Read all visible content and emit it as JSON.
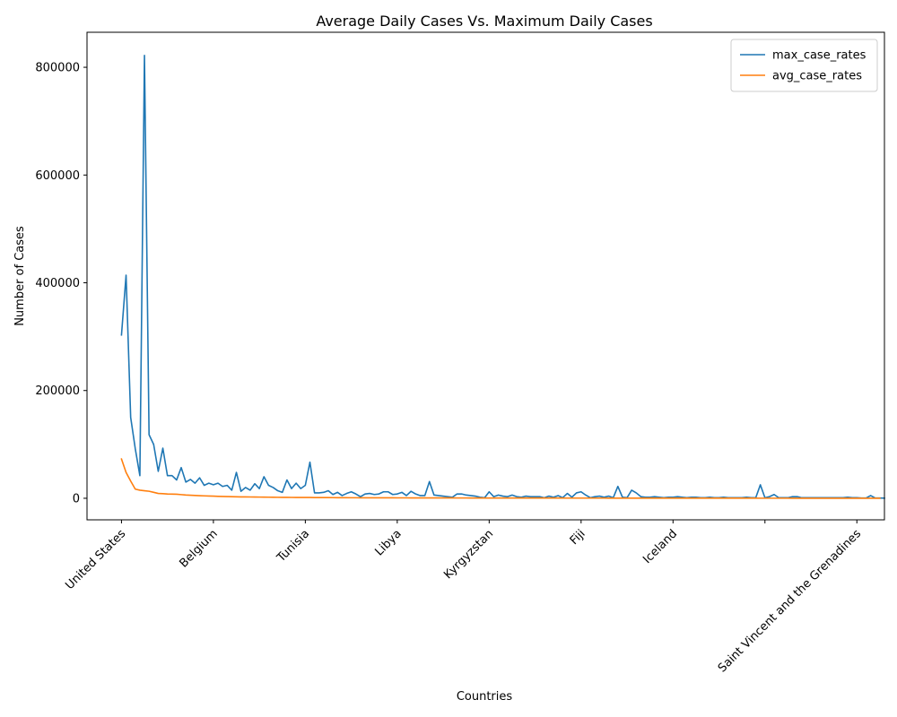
{
  "chart_data": {
    "type": "line",
    "title": "Average Daily Cases Vs. Maximum Daily Cases",
    "xlabel": "Countries",
    "ylabel": "Number of Cases",
    "ylim": [
      -40000,
      865000
    ],
    "xlim": [
      -7.5,
      166
    ],
    "yticks": [
      0,
      200000,
      400000,
      600000,
      800000
    ],
    "xticks": [
      {
        "x": 0,
        "label": "United States"
      },
      {
        "x": 20,
        "label": "Belgium"
      },
      {
        "x": 40,
        "label": "Tunisia"
      },
      {
        "x": 60,
        "label": "Libya"
      },
      {
        "x": 80,
        "label": "Kyrgyzstan"
      },
      {
        "x": 100,
        "label": "Fiji"
      },
      {
        "x": 120,
        "label": "Iceland"
      },
      {
        "x": 140,
        "label": ""
      },
      {
        "x": 160,
        "label": "Saint Vincent and the Grenadines"
      }
    ],
    "grid": false,
    "legend_position": "top-right",
    "series": [
      {
        "name": "max_case_rates",
        "color": "#1f77b4",
        "values": [
          303000,
          414000,
          150000,
          92000,
          42000,
          822000,
          118000,
          100000,
          50000,
          93000,
          42000,
          42000,
          34000,
          57000,
          30000,
          35000,
          28000,
          38000,
          24000,
          28000,
          25000,
          28000,
          22000,
          24000,
          15000,
          48000,
          13000,
          20000,
          15000,
          27000,
          18000,
          40000,
          24000,
          20000,
          14000,
          11000,
          34000,
          18000,
          28000,
          18000,
          24000,
          67000,
          10000,
          10000,
          11000,
          14000,
          7000,
          11000,
          5000,
          9000,
          12000,
          8000,
          3000,
          8000,
          9000,
          7000,
          8000,
          12000,
          12000,
          7000,
          8000,
          11000,
          5000,
          13000,
          8000,
          5000,
          5000,
          31000,
          6000,
          5000,
          4000,
          3000,
          2000,
          8000,
          8000,
          6000,
          5000,
          4000,
          2000,
          1000,
          12000,
          3000,
          6000,
          4000,
          3000,
          6000,
          3000,
          2000,
          4000,
          3000,
          3000,
          3000,
          1000,
          4000,
          2000,
          5000,
          1000,
          9000,
          2000,
          10000,
          12000,
          6000,
          1000,
          3000,
          4000,
          2000,
          4000,
          1000,
          22000,
          2000,
          1000,
          15000,
          10000,
          3000,
          2000,
          2000,
          3000,
          2000,
          1000,
          2000,
          2000,
          3000,
          2000,
          1000,
          2000,
          2000,
          1000,
          1000,
          2000,
          1000,
          1000,
          2000,
          1000,
          1000,
          1000,
          1000,
          2000,
          1000,
          1000,
          25000,
          1000,
          3000,
          7000,
          1000,
          1000,
          1000,
          3000,
          3000,
          1000,
          1000,
          1000,
          1000,
          1000,
          1000,
          1000,
          1000,
          1000,
          1000,
          2000,
          1000,
          1000,
          500,
          500,
          5000,
          500,
          500,
          300
        ],
        "note_count": ""
      },
      {
        "name": "avg_case_rates",
        "color": "#ff7f0e",
        "values": [
          73000,
          48000,
          32000,
          17000,
          15000,
          14000,
          13000,
          11000,
          9000,
          8500,
          8000,
          7800,
          7500,
          6800,
          6000,
          5600,
          5200,
          4800,
          4500,
          4200,
          3900,
          3600,
          3400,
          3200,
          3000,
          2800,
          2600,
          2500,
          2400,
          2300,
          2200,
          2100,
          2000,
          1900,
          1800,
          1700,
          1650,
          1600,
          1550,
          1500,
          1450,
          1400,
          1350,
          1300,
          1250,
          1200,
          1150,
          1100,
          1050,
          1000,
          980,
          960,
          940,
          920,
          900,
          880,
          860,
          840,
          820,
          800,
          780,
          760,
          740,
          720,
          700,
          680,
          660,
          640,
          620,
          600,
          590,
          580,
          570,
          560,
          550,
          540,
          530,
          520,
          510,
          500,
          490,
          480,
          470,
          460,
          450,
          440,
          430,
          420,
          410,
          400,
          395,
          390,
          385,
          380,
          375,
          370,
          365,
          360,
          355,
          350,
          345,
          340,
          335,
          330,
          325,
          320,
          315,
          310,
          305,
          300,
          295,
          290,
          285,
          280,
          275,
          270,
          265,
          260,
          255,
          250,
          245,
          240,
          235,
          230,
          225,
          220,
          215,
          210,
          205,
          200,
          195,
          190,
          185,
          180,
          175,
          170,
          165,
          160,
          155,
          150,
          145,
          140,
          135,
          130,
          125,
          120,
          115,
          110,
          105,
          100,
          95,
          90,
          85,
          80,
          75,
          70,
          65,
          60,
          55,
          50,
          45,
          40,
          35,
          30,
          25,
          20
        ]
      }
    ]
  }
}
